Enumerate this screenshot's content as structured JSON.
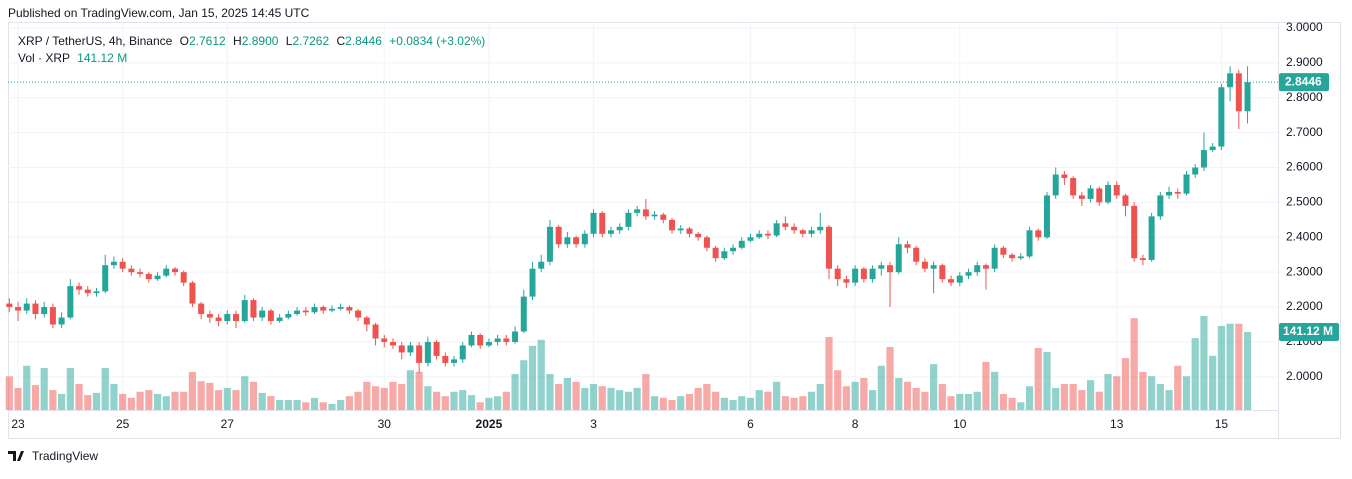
{
  "header": {
    "published": "Published on TradingView.com, Jan 15, 2025 14:45 UTC"
  },
  "footer": {
    "brand": "TradingView"
  },
  "chart_data": {
    "type": "candlestick",
    "legend": {
      "symbol": "XRP / TetherUS, 4h, Binance",
      "keys": [
        "O",
        "H",
        "L",
        "C"
      ],
      "open": "2.7612",
      "high": "2.8900",
      "low": "2.7262",
      "close": "2.8446",
      "change": "+0.0834 (+3.02%)",
      "volume_name": "Vol · XRP",
      "volume": "141.12 M"
    },
    "up_color": "#26a69a",
    "down_color": "#ef5350",
    "ylim": [
      1.905,
      3.017
    ],
    "yticks": [
      {
        "value": 2,
        "label": "2.0000"
      },
      {
        "value": 2.1,
        "label": "2.1000"
      },
      {
        "value": 2.2,
        "label": "2.2000"
      },
      {
        "value": 2.3,
        "label": "2.3000"
      },
      {
        "value": 2.4,
        "label": "2.4000"
      },
      {
        "value": 2.5,
        "label": "2.5000"
      },
      {
        "value": 2.6,
        "label": "2.6000"
      },
      {
        "value": 2.7,
        "label": "2.7000"
      },
      {
        "value": 2.8,
        "label": "2.8000"
      },
      {
        "value": 2.9,
        "label": "2.9000"
      },
      {
        "value": 3,
        "label": "3.0000"
      }
    ],
    "grid": true,
    "categories": [
      null,
      "23",
      null,
      null,
      null,
      null,
      null,
      null,
      null,
      null,
      null,
      null,
      null,
      "25",
      null,
      null,
      null,
      null,
      null,
      null,
      null,
      null,
      null,
      null,
      null,
      "27",
      null,
      null,
      null,
      null,
      null,
      null,
      null,
      null,
      null,
      null,
      null,
      null,
      null,
      null,
      null,
      null,
      null,
      "30",
      null,
      null,
      null,
      null,
      null,
      null,
      null,
      null,
      null,
      null,
      null,
      "2025",
      null,
      null,
      null,
      null,
      null,
      null,
      null,
      null,
      null,
      null,
      null,
      "3",
      null,
      null,
      null,
      null,
      null,
      null,
      null,
      null,
      null,
      null,
      null,
      null,
      null,
      null,
      null,
      null,
      null,
      "6",
      null,
      null,
      null,
      null,
      null,
      null,
      null,
      null,
      null,
      null,
      null,
      "8",
      null,
      null,
      null,
      null,
      null,
      null,
      null,
      null,
      null,
      null,
      null,
      "10",
      null,
      null,
      null,
      null,
      null,
      null,
      null,
      null,
      null,
      null,
      null,
      null,
      null,
      null,
      null,
      null,
      null,
      "13",
      null,
      null,
      null,
      null,
      null,
      null,
      null,
      null,
      null,
      null,
      null,
      "15",
      null,
      null,
      null
    ],
    "candles": [
      [
        2.21,
        2.225,
        2.185,
        2.2
      ],
      [
        2.2,
        2.215,
        2.16,
        2.19
      ],
      [
        2.19,
        2.225,
        2.18,
        2.21
      ],
      [
        2.21,
        2.22,
        2.165,
        2.18
      ],
      [
        2.18,
        2.215,
        2.17,
        2.2
      ],
      [
        2.2,
        2.21,
        2.14,
        2.15
      ],
      [
        2.15,
        2.185,
        2.14,
        2.17
      ],
      [
        2.17,
        2.28,
        2.165,
        2.26
      ],
      [
        2.26,
        2.27,
        2.235,
        2.25
      ],
      [
        2.25,
        2.26,
        2.23,
        2.24
      ],
      [
        2.24,
        2.255,
        2.23,
        2.245
      ],
      [
        2.245,
        2.35,
        2.24,
        2.32
      ],
      [
        2.32,
        2.345,
        2.31,
        2.33
      ],
      [
        2.33,
        2.34,
        2.3,
        2.31
      ],
      [
        2.31,
        2.32,
        2.29,
        2.3
      ],
      [
        2.3,
        2.31,
        2.285,
        2.295
      ],
      [
        2.295,
        2.3,
        2.27,
        2.28
      ],
      [
        2.28,
        2.3,
        2.275,
        2.29
      ],
      [
        2.29,
        2.32,
        2.285,
        2.31
      ],
      [
        2.31,
        2.315,
        2.29,
        2.3
      ],
      [
        2.3,
        2.305,
        2.26,
        2.27
      ],
      [
        2.27,
        2.275,
        2.2,
        2.21
      ],
      [
        2.21,
        2.215,
        2.165,
        2.18
      ],
      [
        2.18,
        2.19,
        2.155,
        2.17
      ],
      [
        2.17,
        2.18,
        2.145,
        2.16
      ],
      [
        2.16,
        2.19,
        2.15,
        2.18
      ],
      [
        2.18,
        2.19,
        2.14,
        2.16
      ],
      [
        2.16,
        2.235,
        2.155,
        2.22
      ],
      [
        2.22,
        2.225,
        2.16,
        2.17
      ],
      [
        2.17,
        2.2,
        2.16,
        2.19
      ],
      [
        2.19,
        2.195,
        2.15,
        2.16
      ],
      [
        2.16,
        2.18,
        2.155,
        2.17
      ],
      [
        2.17,
        2.19,
        2.165,
        2.18
      ],
      [
        2.18,
        2.2,
        2.175,
        2.19
      ],
      [
        2.19,
        2.2,
        2.175,
        2.185
      ],
      [
        2.185,
        2.21,
        2.18,
        2.2
      ],
      [
        2.2,
        2.205,
        2.18,
        2.19
      ],
      [
        2.19,
        2.205,
        2.185,
        2.195
      ],
      [
        2.195,
        2.21,
        2.19,
        2.2
      ],
      [
        2.2,
        2.205,
        2.18,
        2.19
      ],
      [
        2.19,
        2.195,
        2.16,
        2.17
      ],
      [
        2.17,
        2.175,
        2.13,
        2.15
      ],
      [
        2.15,
        2.155,
        2.09,
        2.11
      ],
      [
        2.11,
        2.12,
        2.085,
        2.1
      ],
      [
        2.1,
        2.11,
        2.08,
        2.09
      ],
      [
        2.09,
        2.1,
        2.05,
        2.07
      ],
      [
        2.07,
        2.1,
        2.06,
        2.09
      ],
      [
        2.09,
        2.1,
        2.01,
        2.04
      ],
      [
        2.04,
        2.115,
        2.03,
        2.1
      ],
      [
        2.1,
        2.105,
        2.05,
        2.06
      ],
      [
        2.06,
        2.07,
        2.03,
        2.04
      ],
      [
        2.04,
        2.06,
        2.03,
        2.05
      ],
      [
        2.05,
        2.1,
        2.04,
        2.09
      ],
      [
        2.09,
        2.13,
        2.085,
        2.12
      ],
      [
        2.12,
        2.125,
        2.08,
        2.09
      ],
      [
        2.09,
        2.11,
        2.085,
        2.1
      ],
      [
        2.1,
        2.12,
        2.09,
        2.11
      ],
      [
        2.11,
        2.12,
        2.09,
        2.1
      ],
      [
        2.1,
        2.145,
        2.095,
        2.13
      ],
      [
        2.13,
        2.25,
        2.125,
        2.23
      ],
      [
        2.23,
        2.33,
        2.22,
        2.31
      ],
      [
        2.31,
        2.35,
        2.3,
        2.33
      ],
      [
        2.33,
        2.45,
        2.32,
        2.43
      ],
      [
        2.43,
        2.435,
        2.37,
        2.38
      ],
      [
        2.38,
        2.415,
        2.37,
        2.4
      ],
      [
        2.4,
        2.405,
        2.37,
        2.38
      ],
      [
        2.38,
        2.42,
        2.37,
        2.41
      ],
      [
        2.41,
        2.48,
        2.4,
        2.47
      ],
      [
        2.47,
        2.475,
        2.4,
        2.41
      ],
      [
        2.41,
        2.43,
        2.4,
        2.42
      ],
      [
        2.42,
        2.44,
        2.41,
        2.43
      ],
      [
        2.43,
        2.48,
        2.42,
        2.47
      ],
      [
        2.47,
        2.49,
        2.46,
        2.48
      ],
      [
        2.48,
        2.51,
        2.45,
        2.46
      ],
      [
        2.46,
        2.475,
        2.45,
        2.465
      ],
      [
        2.465,
        2.47,
        2.44,
        2.45
      ],
      [
        2.45,
        2.455,
        2.41,
        2.42
      ],
      [
        2.42,
        2.435,
        2.41,
        2.425
      ],
      [
        2.425,
        2.43,
        2.4,
        2.41
      ],
      [
        2.41,
        2.415,
        2.39,
        2.4
      ],
      [
        2.4,
        2.405,
        2.36,
        2.37
      ],
      [
        2.37,
        2.375,
        2.33,
        2.34
      ],
      [
        2.34,
        2.37,
        2.335,
        2.36
      ],
      [
        2.36,
        2.38,
        2.35,
        2.37
      ],
      [
        2.37,
        2.4,
        2.365,
        2.39
      ],
      [
        2.39,
        2.41,
        2.385,
        2.4
      ],
      [
        2.4,
        2.42,
        2.395,
        2.41
      ],
      [
        2.41,
        2.42,
        2.395,
        2.405
      ],
      [
        2.405,
        2.45,
        2.4,
        2.44
      ],
      [
        2.44,
        2.46,
        2.42,
        2.43
      ],
      [
        2.43,
        2.44,
        2.41,
        2.42
      ],
      [
        2.42,
        2.425,
        2.4,
        2.41
      ],
      [
        2.41,
        2.43,
        2.4,
        2.42
      ],
      [
        2.42,
        2.47,
        2.41,
        2.43
      ],
      [
        2.43,
        2.435,
        2.28,
        2.31
      ],
      [
        2.31,
        2.32,
        2.26,
        2.28
      ],
      [
        2.28,
        2.29,
        2.255,
        2.27
      ],
      [
        2.27,
        2.32,
        2.26,
        2.31
      ],
      [
        2.31,
        2.315,
        2.27,
        2.28
      ],
      [
        2.28,
        2.32,
        2.27,
        2.31
      ],
      [
        2.31,
        2.33,
        2.29,
        2.32
      ],
      [
        2.32,
        2.33,
        2.2,
        2.3
      ],
      [
        2.3,
        2.4,
        2.295,
        2.38
      ],
      [
        2.38,
        2.39,
        2.355,
        2.37
      ],
      [
        2.37,
        2.375,
        2.32,
        2.33
      ],
      [
        2.33,
        2.34,
        2.3,
        2.31
      ],
      [
        2.31,
        2.33,
        2.24,
        2.32
      ],
      [
        2.32,
        2.325,
        2.27,
        2.28
      ],
      [
        2.28,
        2.29,
        2.26,
        2.27
      ],
      [
        2.27,
        2.3,
        2.26,
        2.29
      ],
      [
        2.29,
        2.31,
        2.28,
        2.3
      ],
      [
        2.3,
        2.33,
        2.29,
        2.32
      ],
      [
        2.32,
        2.325,
        2.25,
        2.31
      ],
      [
        2.31,
        2.38,
        2.3,
        2.37
      ],
      [
        2.37,
        2.375,
        2.34,
        2.35
      ],
      [
        2.35,
        2.355,
        2.33,
        2.34
      ],
      [
        2.34,
        2.355,
        2.335,
        2.345
      ],
      [
        2.345,
        2.43,
        2.34,
        2.42
      ],
      [
        2.42,
        2.425,
        2.39,
        2.4
      ],
      [
        2.4,
        2.53,
        2.395,
        2.52
      ],
      [
        2.52,
        2.6,
        2.51,
        2.58
      ],
      [
        2.58,
        2.59,
        2.55,
        2.57
      ],
      [
        2.57,
        2.575,
        2.51,
        2.52
      ],
      [
        2.52,
        2.53,
        2.49,
        2.51
      ],
      [
        2.51,
        2.55,
        2.5,
        2.54
      ],
      [
        2.54,
        2.545,
        2.49,
        2.5
      ],
      [
        2.5,
        2.56,
        2.495,
        2.55
      ],
      [
        2.55,
        2.56,
        2.51,
        2.52
      ],
      [
        2.52,
        2.525,
        2.46,
        2.49
      ],
      [
        2.49,
        2.5,
        2.33,
        2.34
      ],
      [
        2.34,
        2.35,
        2.32,
        2.335
      ],
      [
        2.335,
        2.47,
        2.33,
        2.46
      ],
      [
        2.46,
        2.53,
        2.45,
        2.52
      ],
      [
        2.52,
        2.545,
        2.51,
        2.53
      ],
      [
        2.53,
        2.54,
        2.51,
        2.525
      ],
      [
        2.525,
        2.59,
        2.52,
        2.58
      ],
      [
        2.58,
        2.61,
        2.57,
        2.6
      ],
      [
        2.6,
        2.7,
        2.59,
        2.65
      ],
      [
        2.65,
        2.67,
        2.645,
        2.66
      ],
      [
        2.66,
        2.84,
        2.65,
        2.83
      ],
      [
        2.83,
        2.89,
        2.79,
        2.87
      ],
      [
        2.87,
        2.88,
        2.71,
        2.7612
      ],
      [
        2.7612,
        2.89,
        2.7262,
        2.8446
      ]
    ],
    "volumes": [
      61,
      40,
      80,
      45,
      76,
      36,
      29,
      76,
      47,
      27,
      31,
      76,
      47,
      29,
      22,
      33,
      36,
      29,
      25,
      33,
      33,
      69,
      52,
      49,
      36,
      40,
      36,
      61,
      51,
      31,
      25,
      18,
      18,
      18,
      14,
      22,
      14,
      11,
      18,
      25,
      33,
      51,
      43,
      40,
      51,
      47,
      72,
      69,
      43,
      33,
      25,
      33,
      36,
      27,
      14,
      22,
      25,
      33,
      65,
      90,
      116,
      127,
      65,
      47,
      58,
      51,
      40,
      47,
      43,
      40,
      36,
      33,
      40,
      65,
      25,
      22,
      18,
      25,
      29,
      40,
      47,
      33,
      22,
      18,
      25,
      22,
      36,
      33,
      51,
      25,
      22,
      25,
      33,
      47,
      132,
      72,
      43,
      51,
      58,
      36,
      80,
      114,
      58,
      51,
      40,
      33,
      83,
      47,
      25,
      29,
      29,
      33,
      87,
      69,
      29,
      22,
      14,
      43,
      112,
      105,
      40,
      47,
      47,
      36,
      54,
      33,
      65,
      61,
      94,
      166,
      69,
      61,
      47,
      36,
      80,
      61,
      130,
      170,
      98,
      152,
      156,
      156,
      141.12
    ]
  }
}
